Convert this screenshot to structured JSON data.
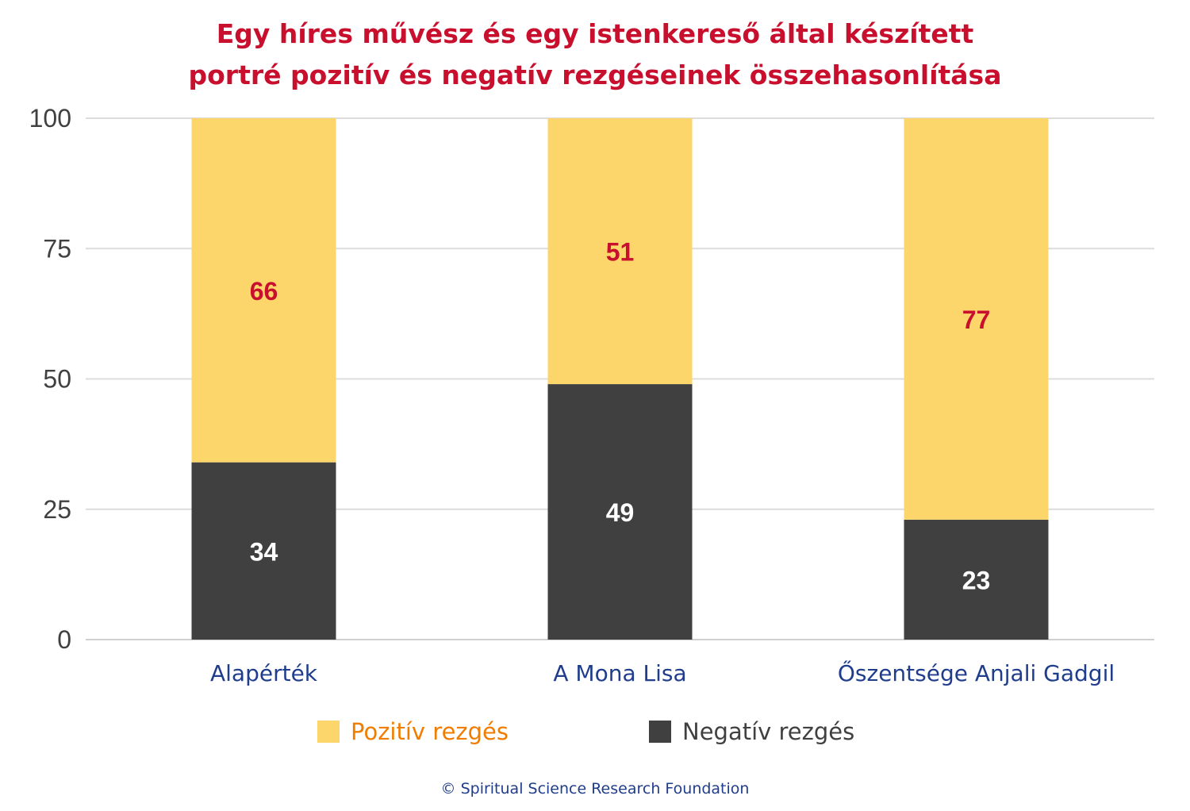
{
  "title_line1": "Egy híres művész és egy istenkereső által készített",
  "title_line2": "portré pozitív és negatív rezgéseinek összehasonlítása",
  "copyright": "© Spiritual Science Research Foundation",
  "colors": {
    "title": "#c8102e",
    "positive": "#fdd66b",
    "negative": "#404040",
    "positive_label": "#c8102e",
    "negative_label": "#ffffff",
    "category_label": "#1f3d8c",
    "legend_positive_text": "#f07d00",
    "legend_negative_text": "#404040"
  },
  "legend": {
    "positive": "Pozitív rezgés",
    "negative": "Negatív rezgés"
  },
  "chart_data": {
    "type": "bar",
    "stacked": true,
    "categories": [
      "Alapérték",
      "A Mona Lisa",
      "Őszentsége Anjali Gadgil"
    ],
    "series": [
      {
        "name": "Negatív rezgés",
        "values": [
          34,
          49,
          23
        ]
      },
      {
        "name": "Pozitív rezgés",
        "values": [
          66,
          51,
          77
        ]
      }
    ],
    "ylim": [
      0,
      100
    ],
    "yticks": [
      0,
      25,
      50,
      75,
      100
    ],
    "grid": true,
    "legend_position": "bottom"
  }
}
